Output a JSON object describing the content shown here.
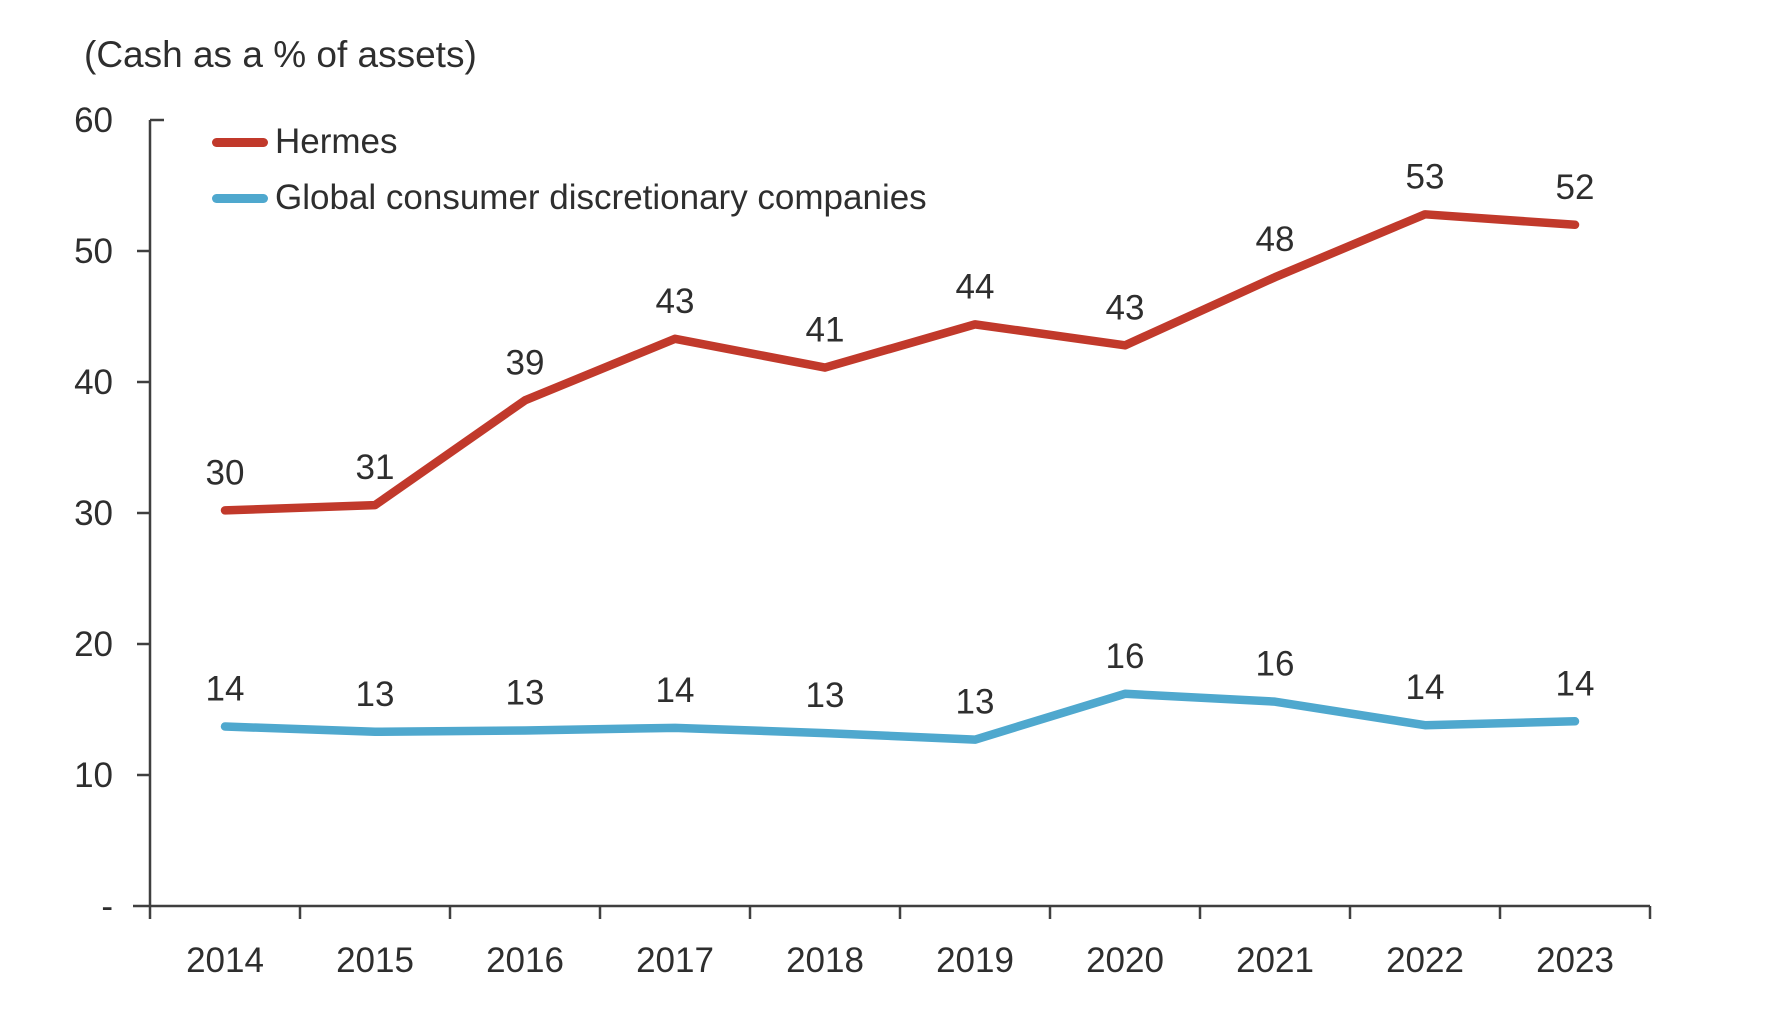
{
  "chart_data": {
    "type": "line",
    "title": "(Cash as a % of assets)",
    "categories": [
      "2014",
      "2015",
      "2016",
      "2017",
      "2018",
      "2019",
      "2020",
      "2021",
      "2022",
      "2023"
    ],
    "series": [
      {
        "name": "Hermes",
        "color": "#c1392b",
        "values": [
          30,
          31,
          39,
          43,
          41,
          44,
          43,
          48,
          53,
          52
        ],
        "plotted": [
          30.2,
          30.6,
          38.6,
          43.3,
          41.1,
          44.4,
          42.8,
          48.0,
          52.8,
          52.0
        ]
      },
      {
        "name": "Global consumer discretionary companies",
        "color": "#4fa8ce",
        "values": [
          14,
          13,
          13,
          14,
          13,
          13,
          16,
          16,
          14,
          14
        ],
        "plotted": [
          13.7,
          13.3,
          13.4,
          13.6,
          13.2,
          12.7,
          16.2,
          15.6,
          13.8,
          14.1
        ]
      }
    ],
    "y_axis": {
      "min": 0,
      "max": 60,
      "tick_values": [
        60,
        50,
        40,
        30,
        20,
        10
      ],
      "tick_labels": [
        "60",
        "50",
        "40",
        "30",
        "20",
        "10"
      ],
      "zero_label": "-"
    },
    "legend_position": "top-left",
    "grid": false,
    "axis_color": "#3f3f3f",
    "text_color": "#2e2e2e"
  }
}
